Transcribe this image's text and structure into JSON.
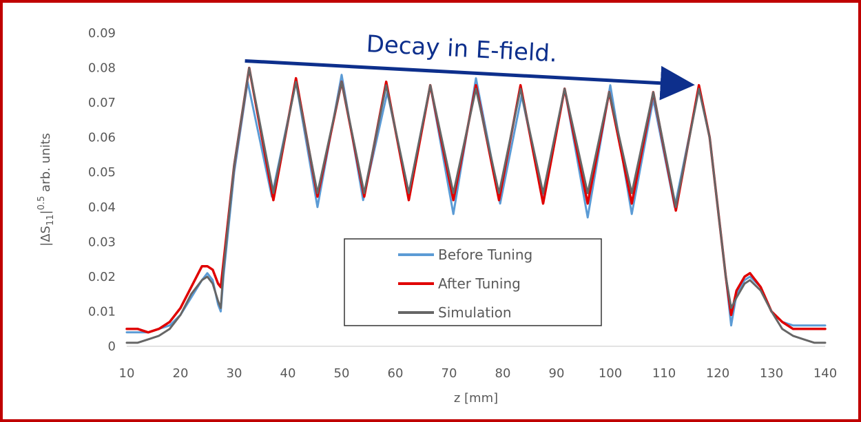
{
  "chart_data": {
    "type": "line",
    "title": "",
    "xlabel": "z [mm]",
    "ylabel": "|ΔS11|^0.5 arb. units",
    "ylabel_parts": {
      "lead": "|ΔS",
      "sub": "11",
      "mid": "|",
      "sup": "0.5",
      "tail": " arb. units"
    },
    "xlim": [
      10,
      140
    ],
    "ylim": [
      0,
      0.09
    ],
    "xticks": [
      10,
      20,
      30,
      40,
      50,
      60,
      70,
      80,
      90,
      100,
      110,
      120,
      130,
      140
    ],
    "xtick_labels": [
      "10",
      "20",
      "30",
      "40",
      "50",
      "60",
      "70",
      "80",
      "90",
      "100",
      "110",
      "120",
      "130",
      "140"
    ],
    "yticks": [
      0,
      0.01,
      0.02,
      0.03,
      0.04,
      0.05,
      0.06,
      0.07,
      0.08,
      0.09
    ],
    "ytick_labels": [
      "0",
      "0.01",
      "0.02",
      "0.03",
      "0.04",
      "0.05",
      "0.06",
      "0.07",
      "0.08",
      "0.09"
    ],
    "grid": false,
    "legend_position": "bottom-center",
    "annotation": {
      "text": "Decay in E-field.",
      "arrow_from": {
        "x": 32,
        "y": 0.082
      },
      "arrow_to": {
        "x": 116,
        "y": 0.075
      },
      "color": "#0d2f8c"
    },
    "series": [
      {
        "name": "Before Tuning",
        "color": "#5b9bd5",
        "x": [
          10,
          12,
          14,
          16,
          18,
          20,
          22,
          24,
          25,
          26,
          27,
          27.5,
          28,
          30,
          32.5,
          37,
          41.5,
          45.5,
          50,
          54,
          58.5,
          62.5,
          66.5,
          70.8,
          75,
          79.5,
          83.5,
          87.5,
          91.5,
          95.8,
          100,
          104,
          108,
          112,
          116.5,
          118.5,
          120,
          121.5,
          122.5,
          123.5,
          125,
          126,
          128,
          130,
          132,
          134,
          136,
          138,
          140
        ],
        "y": [
          0.004,
          0.004,
          0.004,
          0.005,
          0.006,
          0.009,
          0.014,
          0.019,
          0.021,
          0.019,
          0.012,
          0.01,
          0.02,
          0.05,
          0.076,
          0.043,
          0.076,
          0.04,
          0.078,
          0.042,
          0.073,
          0.044,
          0.075,
          0.038,
          0.077,
          0.041,
          0.072,
          0.043,
          0.074,
          0.037,
          0.075,
          0.038,
          0.071,
          0.04,
          0.074,
          0.06,
          0.04,
          0.02,
          0.006,
          0.015,
          0.019,
          0.02,
          0.017,
          0.01,
          0.007,
          0.006,
          0.006,
          0.006,
          0.006
        ]
      },
      {
        "name": "After Tuning",
        "color": "#e00000",
        "x": [
          10,
          12,
          14,
          16,
          18,
          20,
          22,
          24,
          25,
          26,
          27,
          27.5,
          28,
          30,
          32.8,
          37.3,
          41.5,
          45.5,
          50,
          54.2,
          58.3,
          62.5,
          66.5,
          70.8,
          75,
          79.3,
          83.3,
          87.5,
          91.5,
          95.8,
          99.8,
          104,
          108,
          112.2,
          116.5,
          118.5,
          120,
          121.5,
          122.5,
          123.5,
          125,
          126,
          128,
          130,
          132,
          134,
          136,
          138,
          140
        ],
        "y": [
          0.005,
          0.005,
          0.004,
          0.005,
          0.007,
          0.011,
          0.017,
          0.023,
          0.023,
          0.022,
          0.018,
          0.017,
          0.024,
          0.052,
          0.08,
          0.042,
          0.077,
          0.043,
          0.076,
          0.043,
          0.076,
          0.042,
          0.075,
          0.042,
          0.075,
          0.042,
          0.075,
          0.041,
          0.074,
          0.041,
          0.073,
          0.041,
          0.073,
          0.039,
          0.075,
          0.06,
          0.04,
          0.02,
          0.009,
          0.016,
          0.02,
          0.021,
          0.017,
          0.01,
          0.007,
          0.005,
          0.005,
          0.005,
          0.005
        ]
      },
      {
        "name": "Simulation",
        "color": "#666666",
        "x": [
          10,
          12,
          14,
          16,
          18,
          20,
          22,
          24,
          25,
          26,
          27,
          27.5,
          28,
          30,
          32.8,
          37.3,
          41.5,
          45.5,
          50,
          54.2,
          58.3,
          62.5,
          66.5,
          70.8,
          75,
          79.3,
          83.3,
          87.5,
          91.5,
          95.8,
          99.8,
          104,
          108,
          112.2,
          116.5,
          118.5,
          120,
          121.5,
          122.5,
          123.5,
          125,
          126,
          128,
          130,
          132,
          134,
          136,
          138,
          140
        ],
        "y": [
          0.001,
          0.001,
          0.002,
          0.003,
          0.005,
          0.009,
          0.015,
          0.019,
          0.02,
          0.018,
          0.013,
          0.011,
          0.022,
          0.052,
          0.08,
          0.044,
          0.076,
          0.044,
          0.076,
          0.044,
          0.075,
          0.044,
          0.075,
          0.044,
          0.074,
          0.044,
          0.074,
          0.044,
          0.074,
          0.044,
          0.073,
          0.044,
          0.073,
          0.04,
          0.074,
          0.06,
          0.04,
          0.02,
          0.011,
          0.014,
          0.018,
          0.019,
          0.016,
          0.01,
          0.005,
          0.003,
          0.002,
          0.001,
          0.001
        ]
      }
    ]
  }
}
